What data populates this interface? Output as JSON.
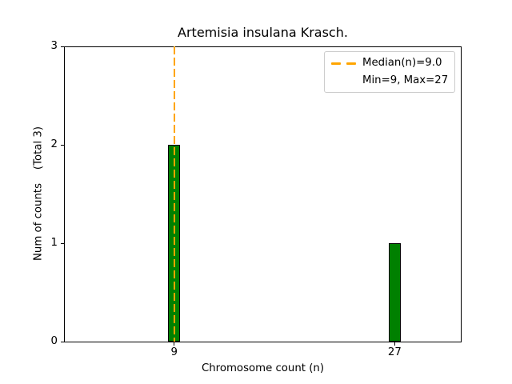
{
  "chart_data": {
    "type": "bar",
    "title": "Artemisia insulana Krasch.",
    "xlabel": "Chromosome count (n)",
    "ylabel": "Num of counts    (Total 3)",
    "categories": [
      9,
      27
    ],
    "values": [
      2,
      1
    ],
    "total_counts": 3,
    "xlim": [
      0,
      32.4
    ],
    "ylim": [
      0,
      3
    ],
    "xtick_values": [
      9,
      27
    ],
    "xtick_labels": [
      "9",
      "27"
    ],
    "ytick_values": [
      0,
      1,
      2,
      3
    ],
    "ytick_labels": [
      "0",
      "1",
      "2",
      "3"
    ],
    "bar_width": 1,
    "bar_color": "#008000",
    "bar_edge_color": "#000000",
    "median": 9.0,
    "median_line_color": "#FFA500",
    "median_line_style": "dashed",
    "min": 9,
    "max": 27,
    "legend_entries": [
      "Median(n)=9.0",
      "Min=9, Max=27"
    ],
    "legend_position": "upper right",
    "grid": false
  }
}
